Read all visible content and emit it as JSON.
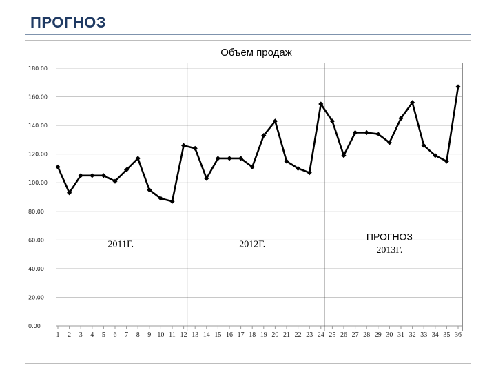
{
  "slide": {
    "title": "ПРОГНОЗ"
  },
  "chart_data": {
    "type": "line",
    "title": "Объем продаж",
    "xlabel": "",
    "ylabel": "",
    "x": [
      1,
      2,
      3,
      4,
      5,
      6,
      7,
      8,
      9,
      10,
      11,
      12,
      13,
      14,
      15,
      16,
      17,
      18,
      19,
      20,
      21,
      22,
      23,
      24,
      25,
      26,
      27,
      28,
      29,
      30,
      31,
      32,
      33,
      34,
      35,
      36
    ],
    "y": [
      111,
      93,
      105,
      105,
      105,
      101,
      109,
      117,
      95,
      89,
      87,
      126,
      124,
      103,
      117,
      117,
      117,
      111,
      133,
      143,
      115,
      110,
      107,
      155,
      143,
      119,
      135,
      135,
      134,
      128,
      145,
      156,
      126,
      119,
      115,
      167
    ],
    "ylim": [
      0,
      180
    ],
    "xlim": [
      1,
      36
    ],
    "y_ticks": [
      "0.00",
      "20.00",
      "40.00",
      "60.00",
      "80.00",
      "100.00",
      "120.00",
      "140.00",
      "160.00",
      "180.00"
    ],
    "grid": true,
    "legend": false,
    "line_color": "#000000",
    "marker": "diamond",
    "dividers_after_x": [
      12,
      24
    ],
    "annotations": [
      {
        "text": "2011Г.",
        "x": 6.5,
        "y": 55
      },
      {
        "text": "2012Г.",
        "x": 18,
        "y": 55
      },
      {
        "text": "ПРОГНОЗ",
        "x": 30,
        "y": 60
      },
      {
        "text": "2013Г.",
        "x": 30,
        "y": 51
      }
    ]
  }
}
